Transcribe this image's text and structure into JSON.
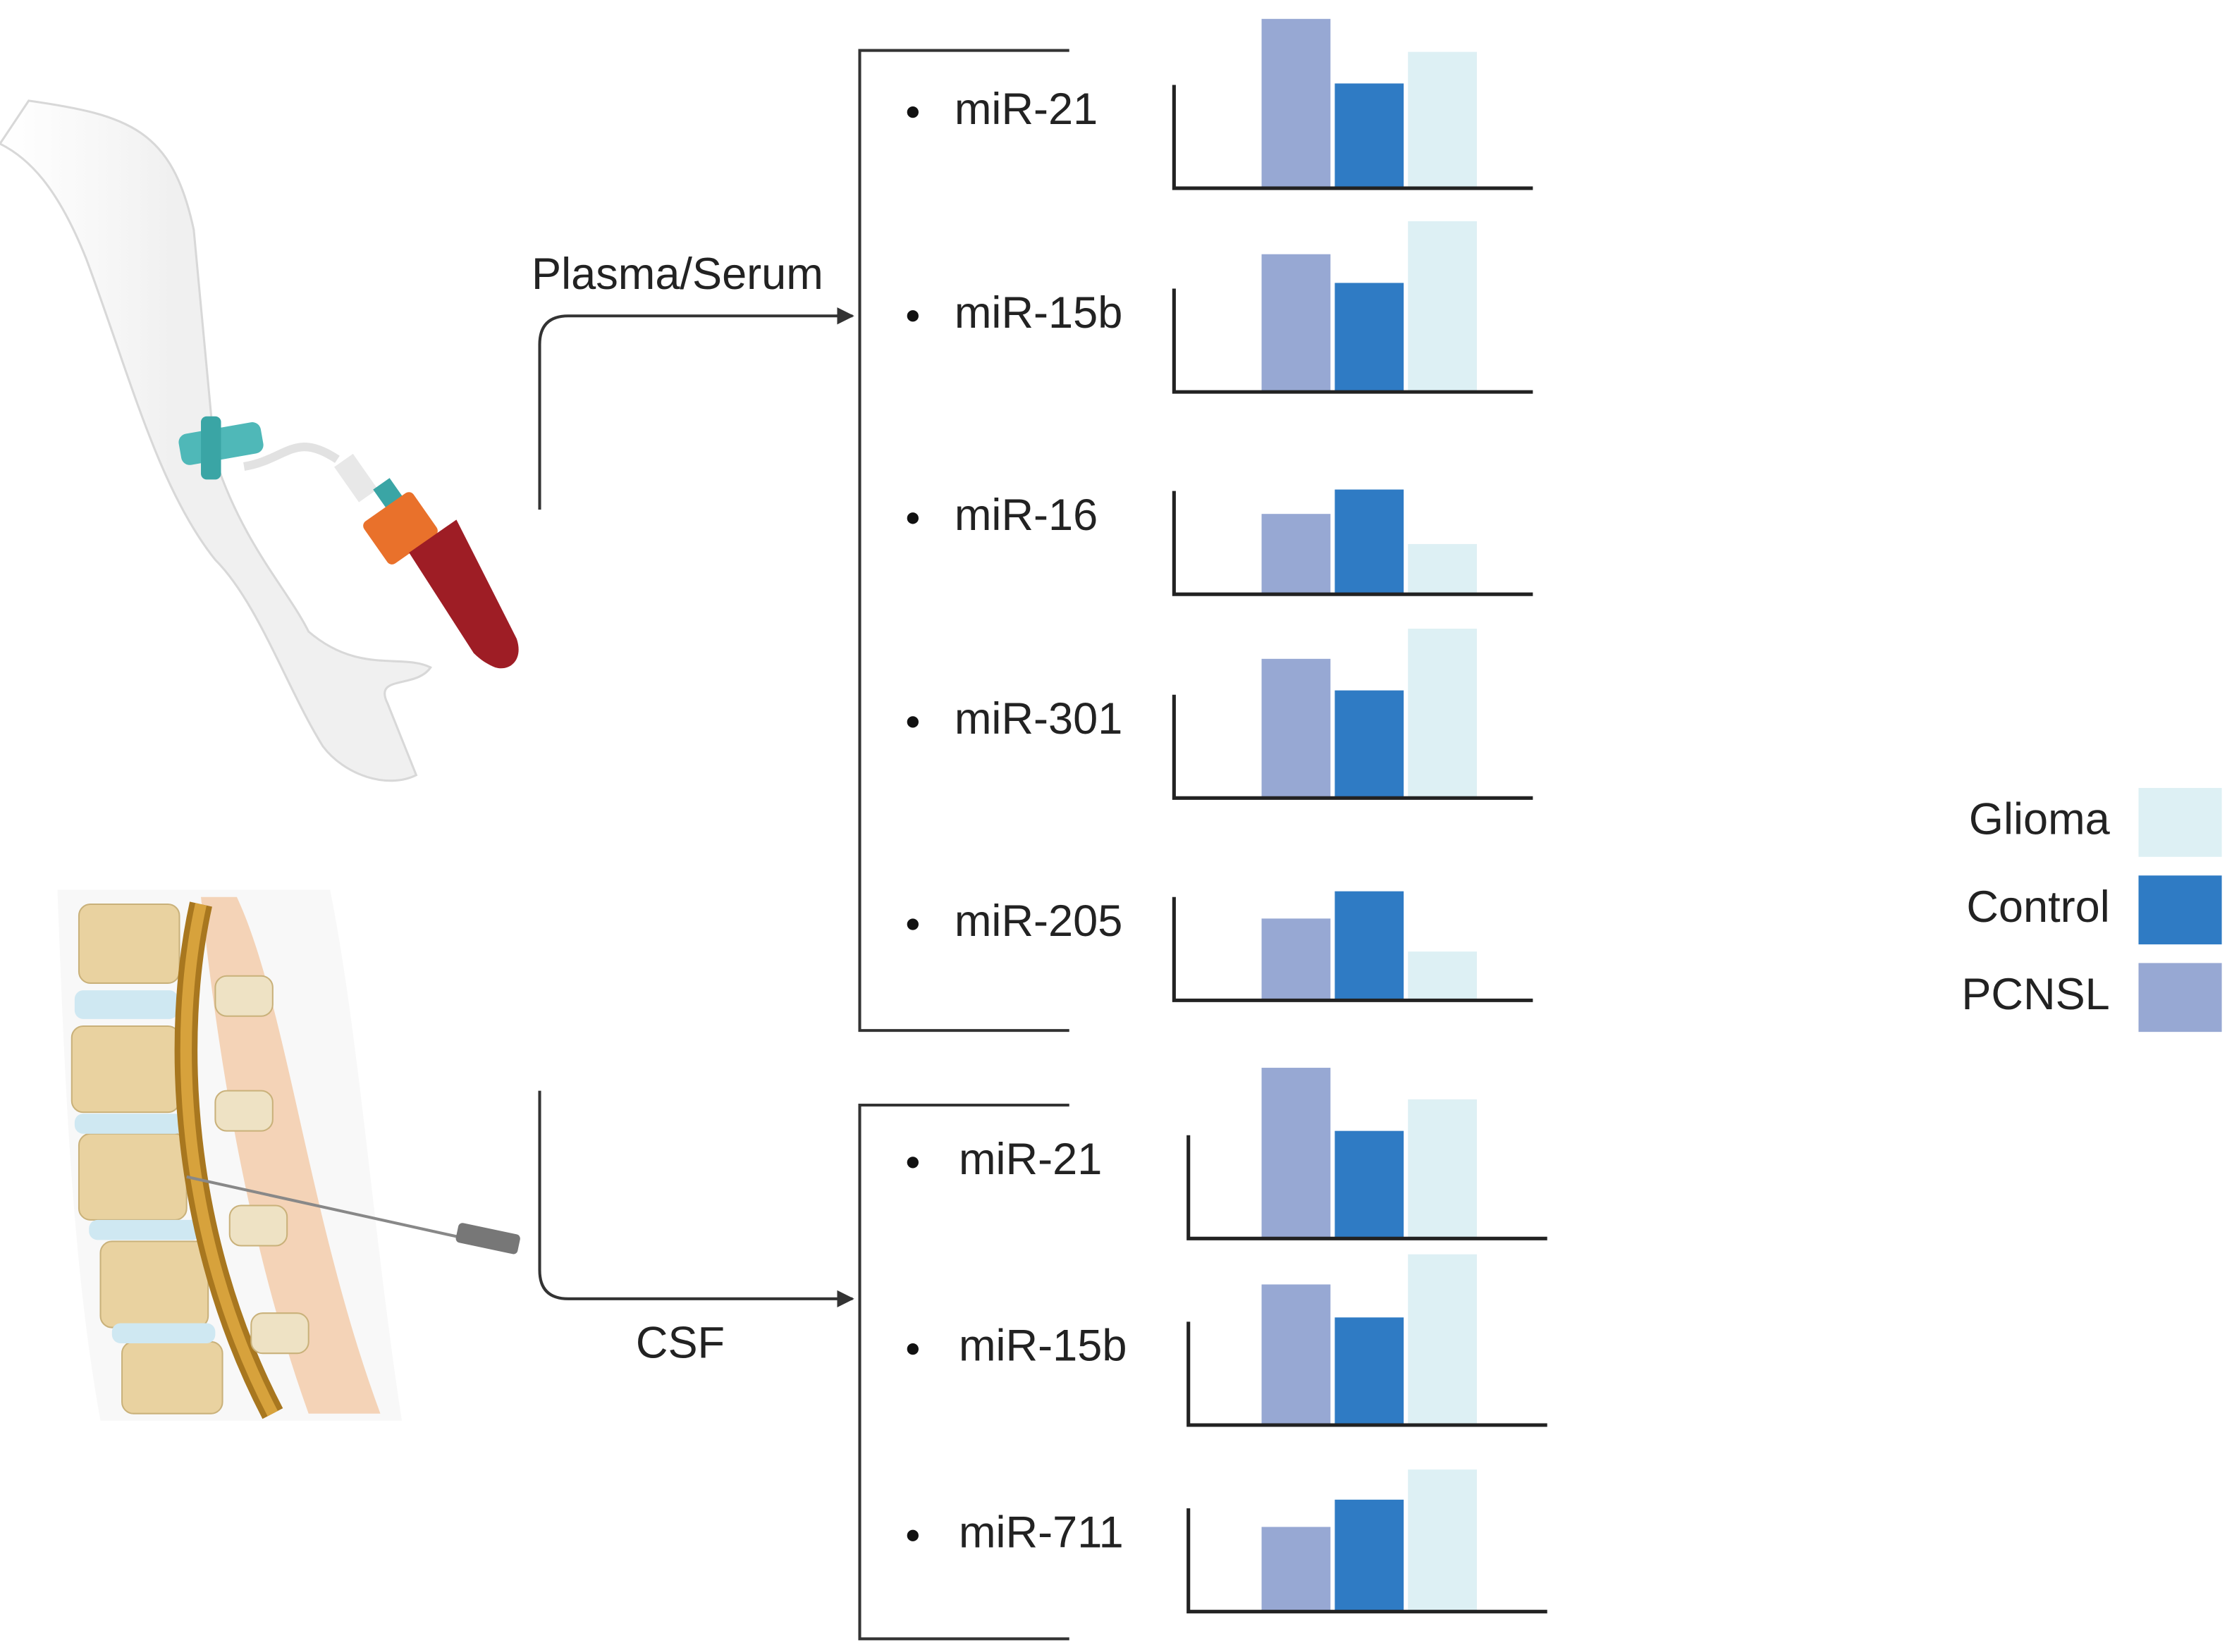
{
  "sections": [
    {
      "label": "Plasma/Serum",
      "panels": [
        {
          "name": "miR-21",
          "values": [
            118,
            73,
            95
          ]
        },
        {
          "name": "miR-15b",
          "values": [
            96,
            76,
            119
          ]
        },
        {
          "name": "miR-16",
          "values": [
            56,
            73,
            35
          ]
        },
        {
          "name": "miR-301",
          "values": [
            97,
            75,
            118
          ]
        },
        {
          "name": "miR-205",
          "values": [
            57,
            76,
            34
          ]
        }
      ]
    },
    {
      "label": "CSF",
      "panels": [
        {
          "name": "miR-21",
          "values": [
            119,
            75,
            97
          ]
        },
        {
          "name": "miR-15b",
          "values": [
            98,
            75,
            119
          ]
        },
        {
          "name": "miR-711",
          "values": [
            59,
            78,
            99
          ]
        }
      ]
    }
  ],
  "series": [
    {
      "name": "PCNSL",
      "color": "#97a8d3"
    },
    {
      "name": "Control",
      "color": "#2f7bc4"
    },
    {
      "name": "Glioma",
      "color": "#ddf0f4"
    }
  ],
  "ylim": [
    0,
    120
  ]
}
